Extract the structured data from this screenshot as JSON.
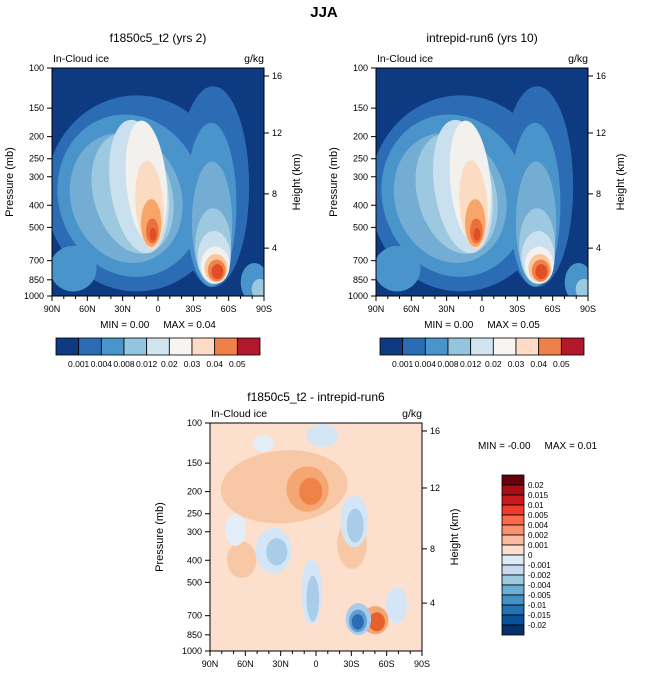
{
  "title": "JJA",
  "field_label": "In-Cloud ice",
  "units": "g/kg",
  "axis": {
    "ylabel_left": "Pressure (mb)",
    "ylabel_right": "Height (km)",
    "pressure_ticks": [
      {
        "label": "100",
        "f": 0.0
      },
      {
        "label": "150",
        "f": 0.176
      },
      {
        "label": "200",
        "f": 0.301
      },
      {
        "label": "250",
        "f": 0.398
      },
      {
        "label": "300",
        "f": 0.477
      },
      {
        "label": "400",
        "f": 0.602
      },
      {
        "label": "500",
        "f": 0.699
      },
      {
        "label": "700",
        "f": 0.845
      },
      {
        "label": "850",
        "f": 0.929
      },
      {
        "label": "1000",
        "f": 1.0
      }
    ],
    "height_ticks": [
      {
        "label": "16",
        "f": 0.035
      },
      {
        "label": "12",
        "f": 0.285
      },
      {
        "label": "8",
        "f": 0.552
      },
      {
        "label": "4",
        "f": 0.79
      }
    ],
    "lat_ticks": [
      {
        "label": "90N",
        "f": 0.0
      },
      {
        "label": "60N",
        "f": 0.1667
      },
      {
        "label": "30N",
        "f": 0.3333
      },
      {
        "label": "0",
        "f": 0.5
      },
      {
        "label": "30S",
        "f": 0.6667
      },
      {
        "label": "60S",
        "f": 0.8333
      },
      {
        "label": "90S",
        "f": 1.0
      }
    ]
  },
  "panels": [
    {
      "id": "case1",
      "title": "f1850c5_t2 (yrs 2)",
      "min_text": "MIN =  0.00",
      "max_text": "MAX =  0.04"
    },
    {
      "id": "case2",
      "title": "intrepid-run6 (yrs 10)",
      "min_text": "MIN =  0.00",
      "max_text": "MAX =  0.05"
    },
    {
      "id": "diff",
      "title": "f1850c5_t2 - intrepid-run6",
      "min_text": "MIN = -0.00",
      "max_text": "MAX =  0.01"
    }
  ],
  "colorbar_top": {
    "labels": [
      "0.001",
      "0.004",
      "0.008",
      "0.012",
      "0.02",
      "0.03",
      "0.04",
      "0.05"
    ],
    "colors": [
      "#0d3a80",
      "#2b6cb5",
      "#4a94cc",
      "#92c5de",
      "#d1e5f0",
      "#f6f5f2",
      "#fddbc7",
      "#f0804a",
      "#b2182b"
    ]
  },
  "colorbar_diff": {
    "labels": [
      "0.02",
      "0.015",
      "0.01",
      "0.005",
      "0.004",
      "0.002",
      "0.001",
      "0",
      "-0.001",
      "-0.002",
      "-0.004",
      "-0.005",
      "-0.01",
      "-0.015",
      "-0.02"
    ],
    "colors": [
      "#67000d",
      "#a50f15",
      "#cb181d",
      "#ef3b2c",
      "#fb6a4a",
      "#fc9272",
      "#fcbba1",
      "#fee0d2",
      "#deebf7",
      "#c6dbef",
      "#9ecae1",
      "#6baed6",
      "#4292c6",
      "#2171b5",
      "#08519c",
      "#08306b"
    ]
  },
  "render": {
    "top": {
      "bg": "#0d3a80",
      "blobs": [
        [
          0.4,
          0.55,
          0.43,
          0.43,
          0,
          "#2b6cb5"
        ],
        [
          0.76,
          0.52,
          0.17,
          0.44,
          0,
          "#2b6cb5"
        ],
        [
          0.1,
          0.88,
          0.11,
          0.1,
          0,
          "#4a94cc"
        ],
        [
          0.37,
          0.56,
          0.34,
          0.36,
          -18,
          "#4a94cc"
        ],
        [
          0.75,
          0.6,
          0.12,
          0.36,
          0,
          "#4a94cc"
        ],
        [
          0.35,
          0.57,
          0.26,
          0.29,
          -20,
          "#74add4"
        ],
        [
          0.755,
          0.68,
          0.095,
          0.27,
          0,
          "#74add4"
        ],
        [
          0.38,
          0.55,
          0.185,
          0.27,
          -15,
          "#9cc8e0"
        ],
        [
          0.76,
          0.78,
          0.085,
          0.165,
          0,
          "#9cc8e0"
        ],
        [
          0.41,
          0.52,
          0.135,
          0.295,
          -8,
          "#cbe0ef"
        ],
        [
          0.765,
          0.83,
          0.078,
          0.115,
          0,
          "#cbe0ef"
        ],
        [
          0.445,
          0.5,
          0.095,
          0.27,
          -5,
          "#f2f1ee"
        ],
        [
          0.77,
          0.865,
          0.068,
          0.082,
          0,
          "#f2f1ee"
        ],
        [
          0.46,
          0.6,
          0.066,
          0.195,
          -4,
          "#fbdcc3"
        ],
        [
          0.773,
          0.878,
          0.054,
          0.062,
          0,
          "#fac79d"
        ],
        [
          0.468,
          0.68,
          0.048,
          0.105,
          0,
          "#f7a569"
        ],
        [
          0.777,
          0.888,
          0.042,
          0.048,
          0,
          "#f1824a"
        ],
        [
          0.473,
          0.715,
          0.03,
          0.055,
          0,
          "#ec6f3c"
        ],
        [
          0.78,
          0.893,
          0.028,
          0.033,
          0,
          "#df4e26"
        ],
        [
          0.476,
          0.73,
          0.016,
          0.028,
          0,
          "#df4e26"
        ],
        [
          0.955,
          0.94,
          0.065,
          0.085,
          0,
          "#4a94cc"
        ],
        [
          0.98,
          0.97,
          0.038,
          0.045,
          0,
          "#9cc8e0"
        ]
      ]
    },
    "diff": {
      "bg": "#fce0cd",
      "blobs": [
        [
          0.35,
          0.28,
          0.3,
          0.16,
          -4,
          "#f8c8a6"
        ],
        [
          0.46,
          0.29,
          0.1,
          0.1,
          0,
          "#f4a773"
        ],
        [
          0.475,
          0.3,
          0.055,
          0.06,
          0,
          "#ee8348"
        ],
        [
          0.15,
          0.6,
          0.07,
          0.08,
          0,
          "#f8c8a6"
        ],
        [
          0.67,
          0.53,
          0.07,
          0.11,
          0,
          "#f8c8a6"
        ],
        [
          0.78,
          0.865,
          0.062,
          0.062,
          0,
          "#f4a773"
        ],
        [
          0.787,
          0.872,
          0.038,
          0.042,
          0,
          "#e6602b"
        ],
        [
          0.53,
          0.055,
          0.075,
          0.05,
          0,
          "#d4e6f5"
        ],
        [
          0.25,
          0.09,
          0.05,
          0.035,
          0,
          "#e4eef8"
        ],
        [
          0.3,
          0.56,
          0.085,
          0.1,
          0,
          "#d4e6f5"
        ],
        [
          0.315,
          0.565,
          0.05,
          0.06,
          0,
          "#a9cde9"
        ],
        [
          0.48,
          0.74,
          0.05,
          0.145,
          0,
          "#d4e6f5"
        ],
        [
          0.485,
          0.77,
          0.03,
          0.1,
          0,
          "#a9cde9"
        ],
        [
          0.12,
          0.47,
          0.05,
          0.07,
          0,
          "#e4eef8"
        ],
        [
          0.68,
          0.43,
          0.065,
          0.115,
          0,
          "#d4e6f5"
        ],
        [
          0.685,
          0.45,
          0.04,
          0.075,
          0,
          "#a9cde9"
        ],
        [
          0.88,
          0.8,
          0.05,
          0.08,
          0,
          "#d4e6f5"
        ],
        [
          0.7,
          0.86,
          0.06,
          0.07,
          0,
          "#a9cde9"
        ],
        [
          0.698,
          0.868,
          0.042,
          0.05,
          0,
          "#5b9fd4"
        ],
        [
          0.697,
          0.872,
          0.028,
          0.034,
          0,
          "#2b6cb3"
        ]
      ]
    }
  },
  "chart_data": [
    {
      "type": "heatmap",
      "subtype": "filled-contour",
      "title": "f1850c5_t2 (yrs 2)",
      "season": "JJA",
      "variable": "In-Cloud ice",
      "units": "g/kg",
      "ylabel": "Pressure (mb)",
      "y_scale": "log",
      "y_ticks": [
        100,
        150,
        200,
        250,
        300,
        400,
        500,
        700,
        850,
        1000
      ],
      "y_right_label": "Height (km)",
      "y_right_ticks": [
        16,
        12,
        8,
        4
      ],
      "x_ticks": [
        "90N",
        "60N",
        "30N",
        "0",
        "30S",
        "60S",
        "90S"
      ],
      "levels": [
        0.001,
        0.004,
        0.008,
        0.012,
        0.02,
        0.03,
        0.04,
        0.05
      ],
      "min": "0.00",
      "max": "0.04",
      "features": [
        {
          "name": "tropical mid-level maximum",
          "lat": "5N-10N",
          "pressure_mb": 500,
          "approx_value": 0.04
        },
        {
          "name": "upward plume of enhanced ice",
          "lat": "0-15N",
          "pressure_range_mb": "200-550"
        },
        {
          "name": "southern-ocean boundary-layer maximum",
          "lat": "45S-55S",
          "pressure_mb": 850,
          "approx_value": 0.03
        },
        {
          "name": "background minimum",
          "approx_value": 0.0
        }
      ]
    },
    {
      "type": "heatmap",
      "subtype": "filled-contour",
      "title": "intrepid-run6 (yrs 10)",
      "season": "JJA",
      "variable": "In-Cloud ice",
      "units": "g/kg",
      "ylabel": "Pressure (mb)",
      "y_scale": "log",
      "y_ticks": [
        100,
        150,
        200,
        250,
        300,
        400,
        500,
        700,
        850,
        1000
      ],
      "y_right_label": "Height (km)",
      "y_right_ticks": [
        16,
        12,
        8,
        4
      ],
      "x_ticks": [
        "90N",
        "60N",
        "30N",
        "0",
        "30S",
        "60S",
        "90S"
      ],
      "levels": [
        0.001,
        0.004,
        0.008,
        0.012,
        0.02,
        0.03,
        0.04,
        0.05
      ],
      "min": "0.00",
      "max": "0.05",
      "features": [
        {
          "name": "tropical mid-level maximum",
          "lat": "5N-10N",
          "pressure_mb": 500,
          "approx_value": 0.05
        },
        {
          "name": "southern-ocean boundary-layer maximum",
          "lat": "45S-55S",
          "pressure_mb": 850,
          "approx_value": 0.03
        }
      ]
    },
    {
      "type": "heatmap",
      "subtype": "filled-contour-difference",
      "title": "f1850c5_t2 - intrepid-run6",
      "season": "JJA",
      "variable": "In-Cloud ice",
      "units": "g/kg",
      "ylabel": "Pressure (mb)",
      "y_scale": "log",
      "y_ticks": [
        100,
        150,
        200,
        250,
        300,
        400,
        500,
        700,
        850,
        1000
      ],
      "y_right_label": "Height (km)",
      "y_right_ticks": [
        16,
        12,
        8,
        4
      ],
      "x_ticks": [
        "90N",
        "60N",
        "30N",
        "0",
        "30S",
        "60S",
        "90S"
      ],
      "levels": [
        -0.02,
        -0.015,
        -0.01,
        -0.005,
        -0.004,
        -0.002,
        -0.001,
        0,
        0.001,
        0.002,
        0.004,
        0.005,
        0.01,
        0.015,
        0.02
      ],
      "min": "-0.00",
      "max": "0.01",
      "features": [
        {
          "name": "weak positive band",
          "lat": "60N-5S",
          "pressure_range_mb": "200-350",
          "approx_value": 0.005
        },
        {
          "name": "positive spot",
          "lat": "40S",
          "pressure_mb": 850,
          "approx_value": 0.01
        },
        {
          "name": "negative spot",
          "lat": "48S",
          "pressure_mb": 830,
          "approx_value": -0.005
        },
        {
          "name": "scattered weak negatives",
          "lat": "various",
          "approx_value": -0.002
        }
      ]
    }
  ]
}
